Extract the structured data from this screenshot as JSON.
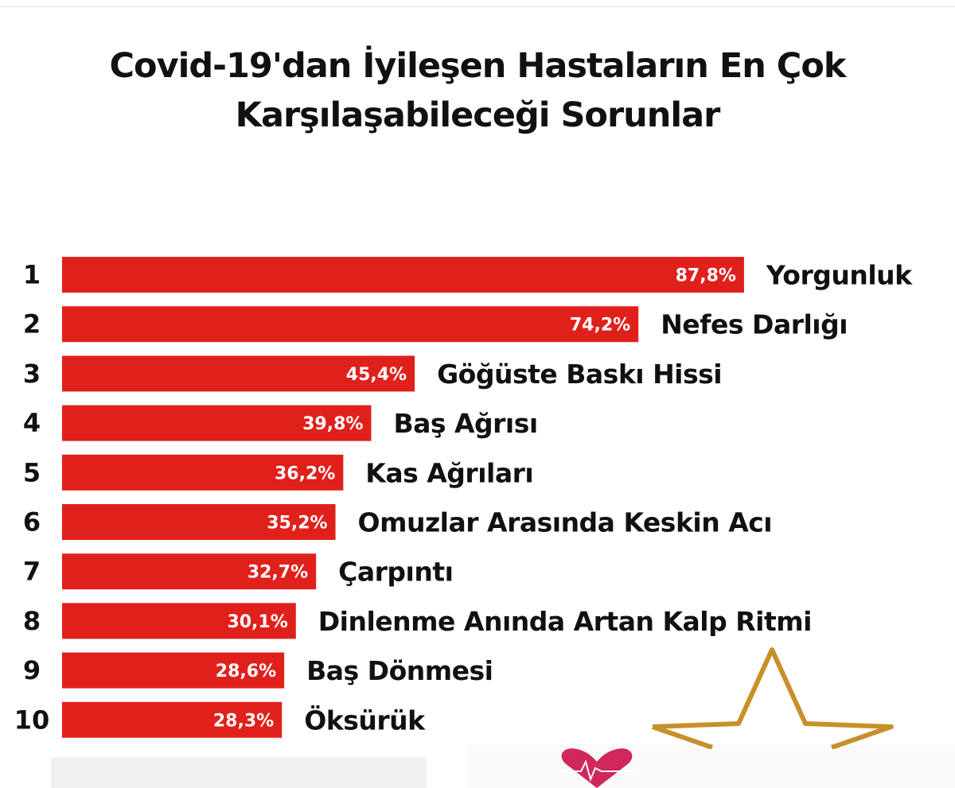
{
  "chart_data": {
    "type": "bar",
    "orientation": "horizontal",
    "title": "Covid-19'dan İyileşen Hastaların En Çok Karşılaşabileceği Sorunlar",
    "title_lines": [
      "Covid-19'dan İyileşen Hastaların En Çok",
      "Karşılaşabileceği Sorunlar"
    ],
    "ranks": [
      "1",
      "2",
      "3",
      "4",
      "5",
      "6",
      "7",
      "8",
      "9",
      "10"
    ],
    "categories": [
      "Yorgunluk",
      "Nefes Darlığı",
      "Göğüste Baskı Hissi",
      "Baş Ağrısı",
      "Kas Ağrıları",
      "Omuzlar Arasında Keskin Acı",
      "Çarpıntı",
      "Dinlenme Anında Artan Kalp Ritmi",
      "Baş Dönmesi",
      "Öksürük"
    ],
    "values": [
      87.8,
      74.2,
      45.4,
      39.8,
      36.2,
      35.2,
      32.7,
      30.1,
      28.6,
      28.3
    ],
    "value_labels": [
      "87,8%",
      "74,2%",
      "45,4%",
      "39,8%",
      "36,2%",
      "35,2%",
      "32,7%",
      "30,1%",
      "28,6%",
      "28,3%"
    ],
    "bar_color": "#e0201b",
    "xlim": [
      0,
      100
    ],
    "grid": false,
    "legend": "none"
  },
  "decorations": {
    "star_icon": "star-outline-icon",
    "heart_icon": "heart-ecg-icon"
  }
}
